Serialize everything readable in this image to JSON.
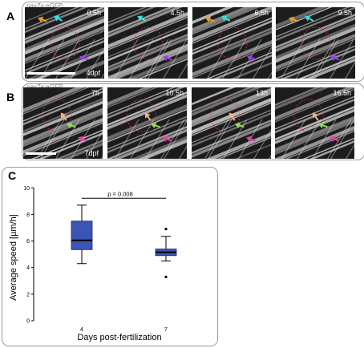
{
  "panelA": {
    "letter": "A",
    "gene": "pax7a:eGFP",
    "stage": "4dpf",
    "frames": [
      {
        "time": "0.5h",
        "arrows": [
          "orange",
          "cyan",
          "purple"
        ]
      },
      {
        "time": "4.5h",
        "arrows": [
          "cyan",
          "purple"
        ]
      },
      {
        "time": "6.5h",
        "arrows": [
          "orange",
          "cyan",
          "purple"
        ]
      },
      {
        "time": "9.5h",
        "arrows": [
          "orange",
          "cyan",
          "purple"
        ]
      }
    ]
  },
  "panelB": {
    "letter": "B",
    "gene": "pax7a:eGFP",
    "stage": "7dpf",
    "frames": [
      {
        "time": "7h",
        "arrows": [
          "peach",
          "green",
          "magenta"
        ]
      },
      {
        "time": "10.5h",
        "arrows": [
          "peach",
          "green",
          "magenta"
        ]
      },
      {
        "time": "13h",
        "arrows": [
          "peach",
          "green",
          "magenta"
        ]
      },
      {
        "time": "16.5h",
        "arrows": [
          "peach",
          "green",
          "magenta"
        ]
      }
    ]
  },
  "arrow_colors": {
    "orange": "#f39a21",
    "cyan": "#35e0e0",
    "purple": "#9b3ff0",
    "peach": "#f2b27a",
    "green": "#8ee05a",
    "magenta": "#ef3aa5"
  },
  "panelC": {
    "letter": "C",
    "chart_data": {
      "type": "box",
      "xlabel": "Days post-fertilization",
      "ylabel": "Average speed [µm/h]",
      "categories": [
        "4",
        "7"
      ],
      "yticks": [
        0,
        2,
        4,
        6,
        8,
        10
      ],
      "ylim": [
        0,
        10.5
      ],
      "box_color": "#3a55b4",
      "boxes": [
        {
          "category": "4",
          "whisker_low": 4.3,
          "q1": 5.35,
          "median": 6.05,
          "q3": 7.5,
          "whisker_high": 8.7,
          "outliers": []
        },
        {
          "category": "7",
          "whisker_low": 4.5,
          "q1": 4.9,
          "median": 5.15,
          "q3": 5.4,
          "whisker_high": 6.35,
          "outliers": [
            6.9,
            3.3
          ]
        }
      ],
      "annotation": {
        "text": "p = 0.008",
        "y": 9.7
      }
    }
  }
}
